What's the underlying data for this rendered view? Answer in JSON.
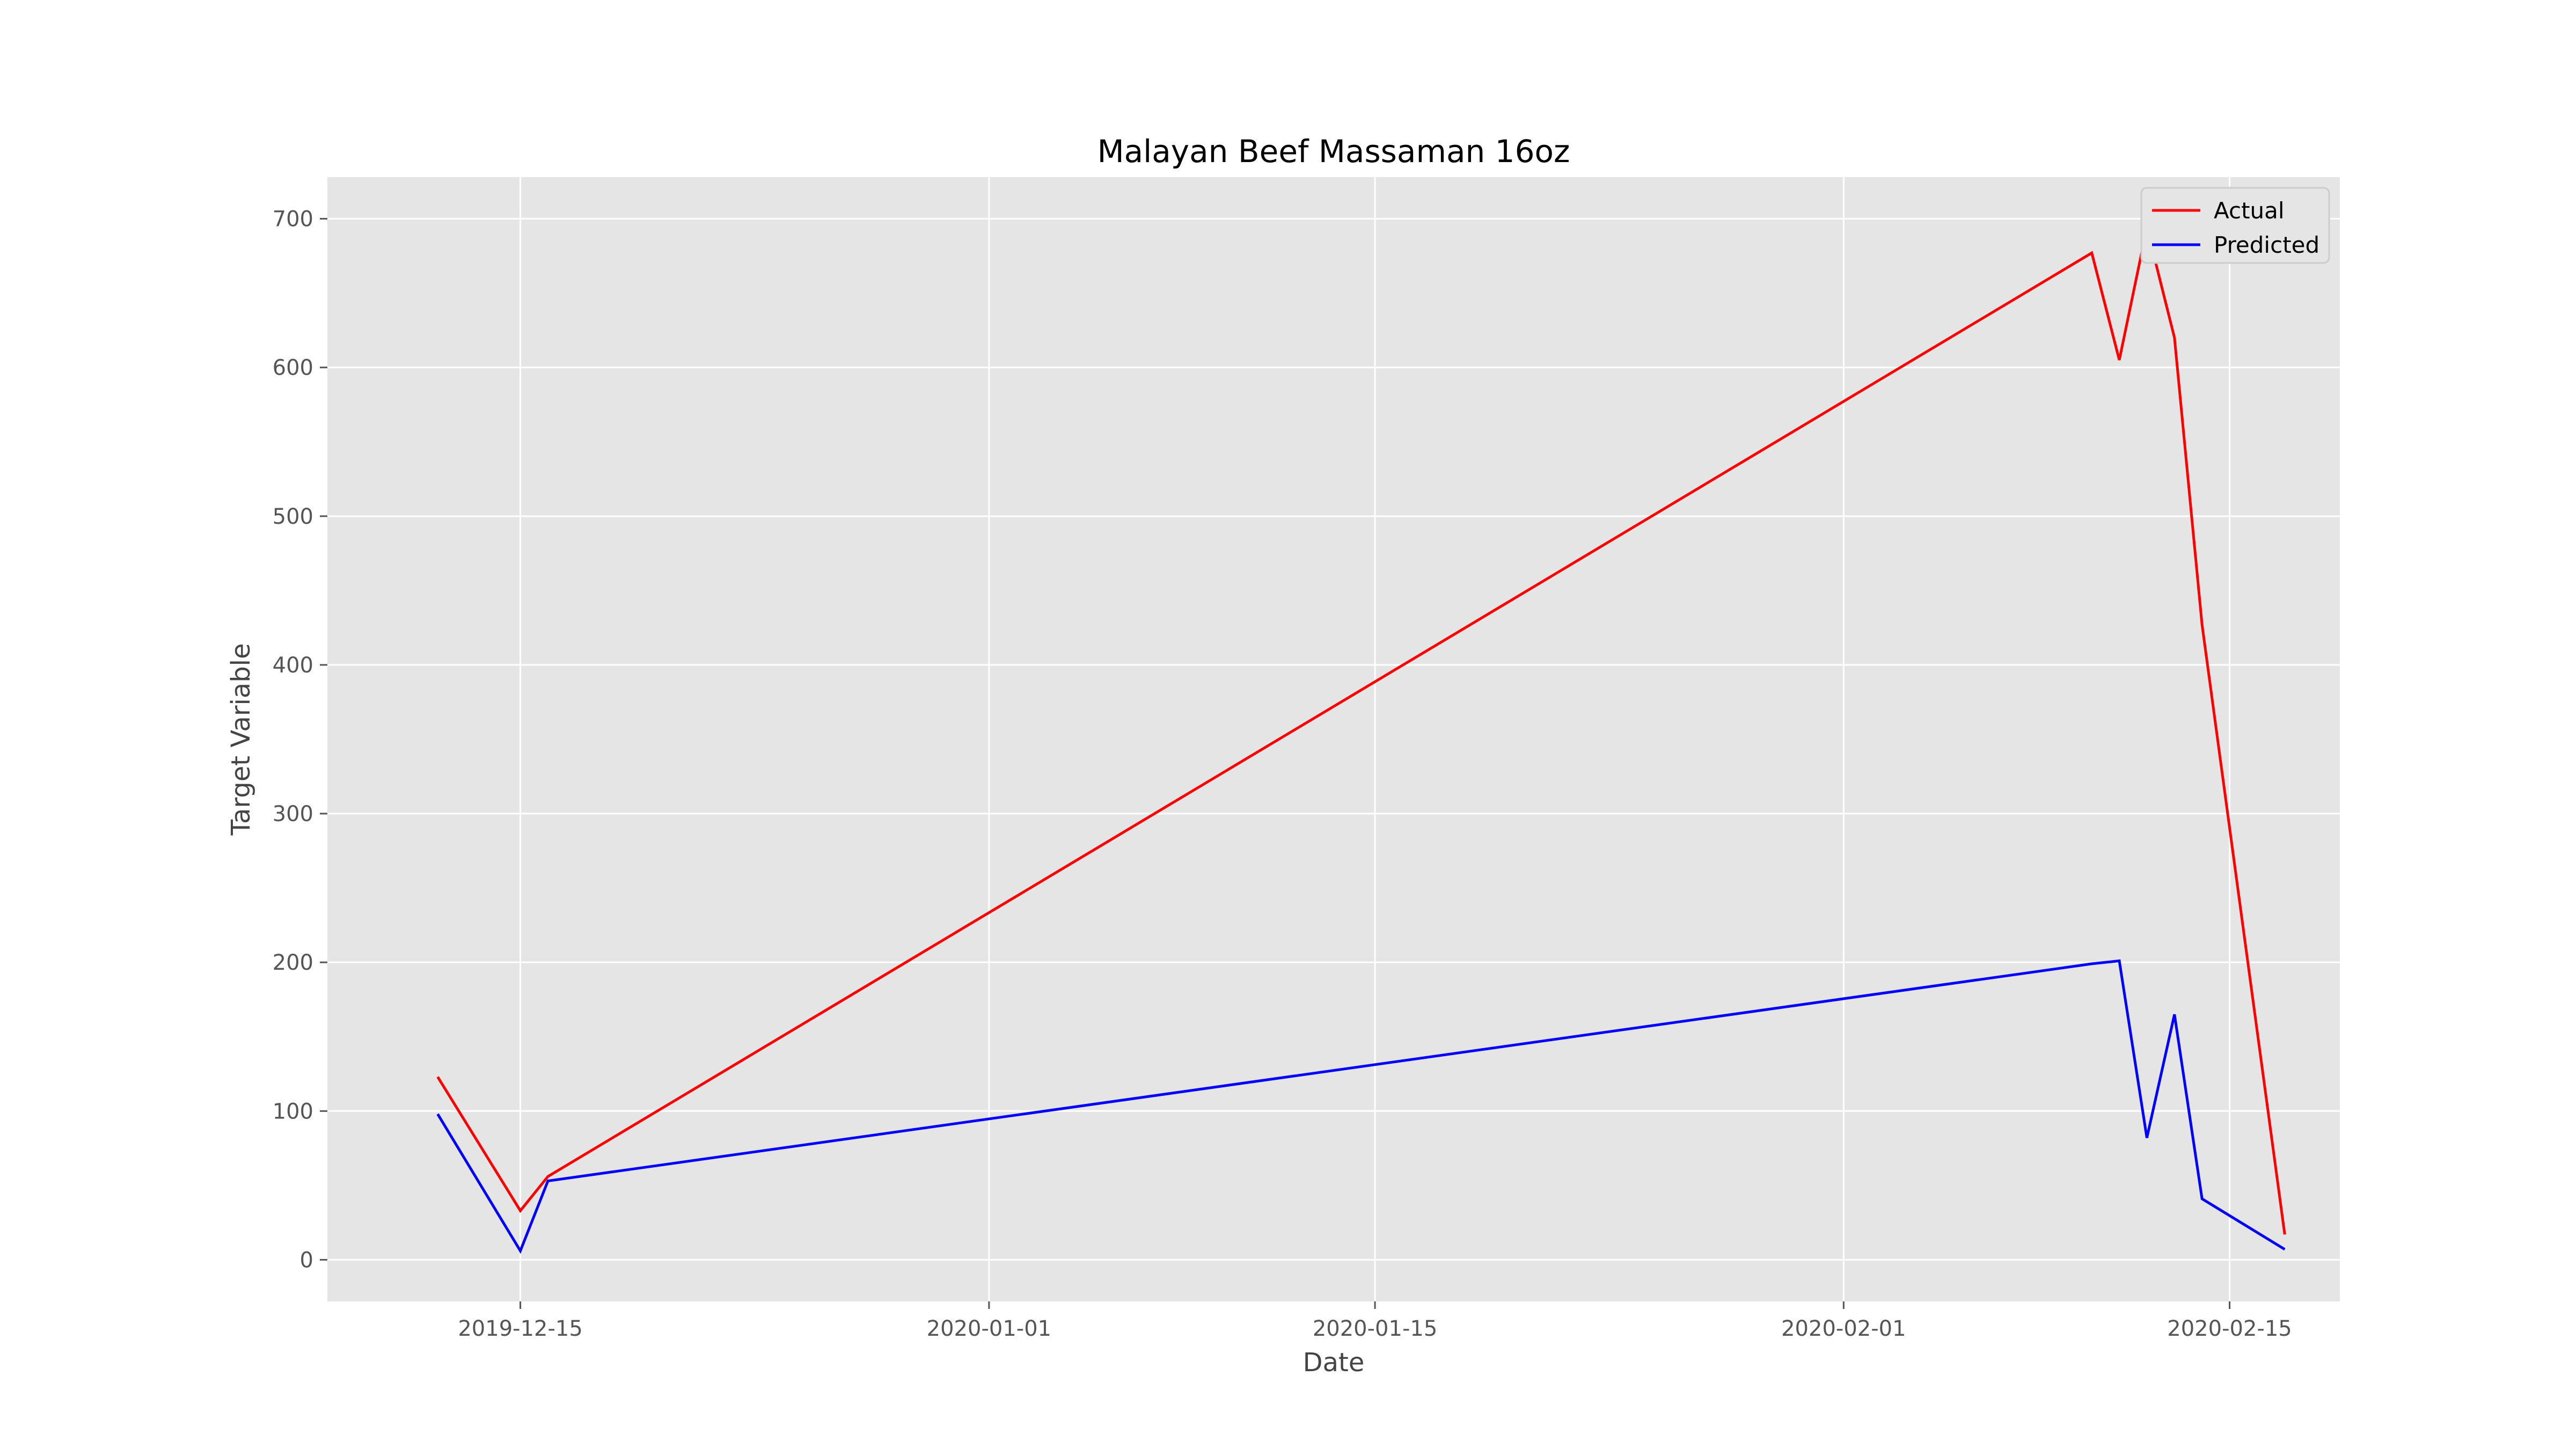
{
  "chart_data": {
    "type": "line",
    "title": "Malayan Beef Massaman 16oz",
    "xlabel": "Date",
    "ylabel": "Target Variable",
    "x_axis_type": "date",
    "xlim": [
      "2019-12-08",
      "2020-02-19"
    ],
    "ylim": [
      -28,
      728
    ],
    "grid": true,
    "legend_position": "top-right",
    "x_ticks": [
      "2019-12-15",
      "2020-01-01",
      "2020-01-15",
      "2020-02-01",
      "2020-02-15"
    ],
    "x_tick_labels": [
      "2019-12-15",
      "2020-01-01",
      "2020-01-15",
      "2020-02-01",
      "2020-02-15"
    ],
    "y_ticks": [
      0,
      100,
      200,
      300,
      400,
      500,
      600,
      700
    ],
    "y_tick_labels": [
      "0",
      "100",
      "200",
      "300",
      "400",
      "500",
      "600",
      "700"
    ],
    "x": [
      "2019-12-12",
      "2019-12-15",
      "2019-12-16",
      "2020-02-10",
      "2020-02-11",
      "2020-02-12",
      "2020-02-13",
      "2020-02-14",
      "2020-02-17"
    ],
    "series": [
      {
        "name": "Actual",
        "color": "#ff0000",
        "values": [
          123,
          33,
          56,
          677,
          605,
          694,
          620,
          427,
          17
        ]
      },
      {
        "name": "Predicted",
        "color": "#0000ff",
        "values": [
          98,
          6,
          53,
          199,
          201,
          82,
          165,
          41,
          7
        ]
      }
    ],
    "colors": {
      "plot_background": "#e5e5e5",
      "grid": "#ffffff",
      "legend_background": "#e5e5e5",
      "legend_border": "#cccccc"
    }
  }
}
